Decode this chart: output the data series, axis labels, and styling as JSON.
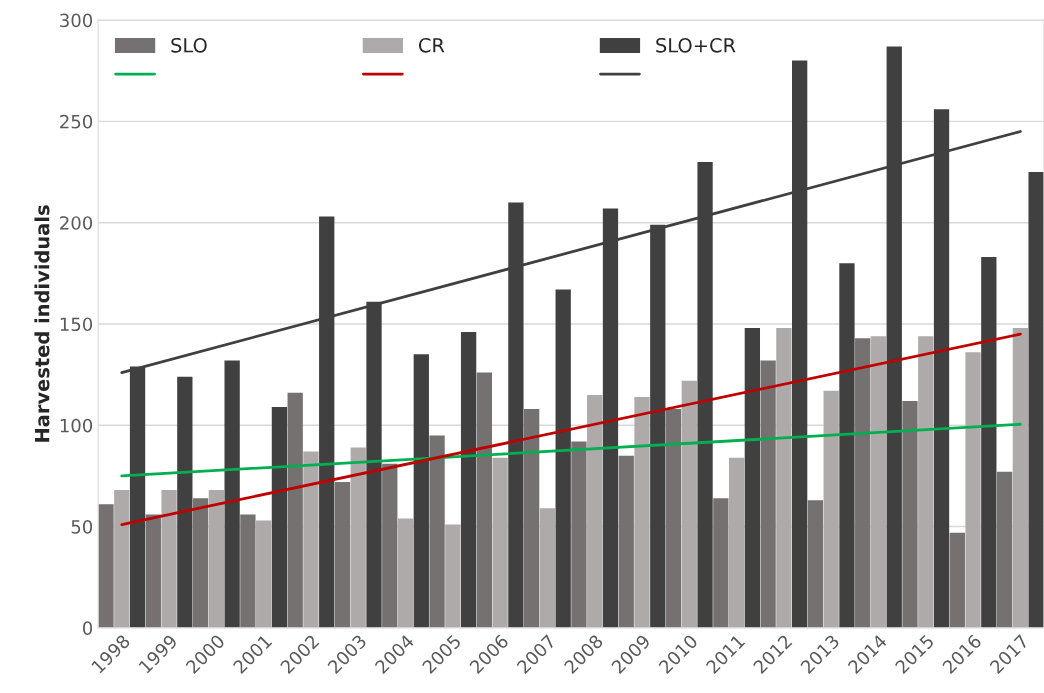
{
  "chart_data": {
    "type": "bar",
    "ylabel": "Harvested individuals",
    "categories": [
      "1998",
      "1999",
      "2000",
      "2001",
      "2002",
      "2003",
      "2004",
      "2005",
      "2006",
      "2007",
      "2008",
      "2009",
      "2010",
      "2011",
      "2012",
      "2013",
      "2014",
      "2015",
      "2016",
      "2017"
    ],
    "series": [
      {
        "name": "SLO",
        "color": "#757171",
        "values": [
          61,
          56,
          64,
          56,
          116,
          72,
          81,
          95,
          126,
          108,
          92,
          85,
          108,
          64,
          132,
          63,
          143,
          112,
          47,
          77
        ]
      },
      {
        "name": "CR",
        "color": "#aeaaaa",
        "values": [
          68,
          68,
          68,
          53,
          87,
          89,
          54,
          51,
          84,
          59,
          115,
          114,
          122,
          84,
          148,
          117,
          144,
          144,
          136,
          148
        ]
      },
      {
        "name": "SLO+CR",
        "color": "#404040",
        "values": [
          129,
          124,
          132,
          109,
          203,
          161,
          135,
          146,
          210,
          167,
          207,
          199,
          230,
          148,
          280,
          180,
          287,
          256,
          183,
          225
        ]
      },
      {
        "type": "line",
        "color": "#00b050",
        "values": [
          75,
          null,
          null,
          null,
          null,
          null,
          null,
          null,
          null,
          null,
          null,
          null,
          null,
          null,
          null,
          null,
          null,
          null,
          null,
          100.5
        ]
      },
      {
        "type": "line",
        "color": "#c00000",
        "values": [
          51,
          null,
          null,
          null,
          null,
          null,
          null,
          null,
          null,
          null,
          null,
          null,
          null,
          null,
          null,
          null,
          null,
          null,
          null,
          145
        ]
      },
      {
        "type": "line",
        "color": "#404040",
        "values": [
          126,
          null,
          null,
          null,
          null,
          null,
          null,
          null,
          null,
          null,
          null,
          null,
          null,
          null,
          null,
          null,
          null,
          null,
          null,
          245
        ]
      }
    ],
    "ylim": [
      0,
      300
    ],
    "yticks": [
      0,
      50,
      100,
      150,
      200,
      250,
      300
    ],
    "grid": "y",
    "legend": "top"
  }
}
